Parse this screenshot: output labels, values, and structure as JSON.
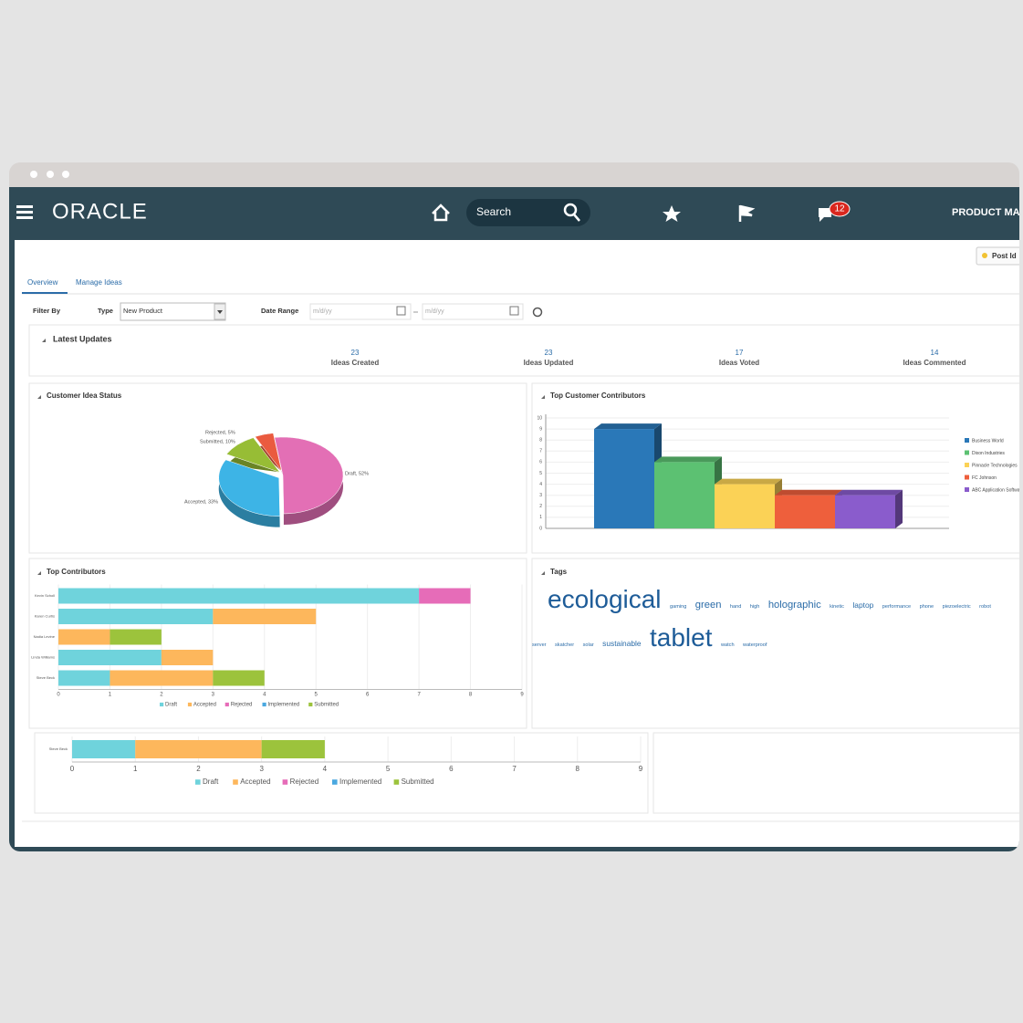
{
  "header": {
    "logo": "ORACLE",
    "search_placeholder": "Search",
    "notification_count": 12,
    "user_menu": "PRODUCT MA"
  },
  "toolbar": {
    "post_button": "Post Id"
  },
  "tabs": [
    "Overview",
    "Manage Ideas"
  ],
  "filter": {
    "label": "Filter By",
    "type_label": "Type",
    "type_value": "New Product",
    "date_label": "Date Range",
    "date_from": "m/d/yy",
    "date_to": "m/d/yy"
  },
  "latest_updates": {
    "title": "Latest Updates",
    "stats": [
      {
        "value": 23,
        "label": "Ideas Created"
      },
      {
        "value": 23,
        "label": "Ideas Updated"
      },
      {
        "value": 17,
        "label": "Ideas Voted"
      },
      {
        "value": 14,
        "label": "Ideas Commented"
      }
    ]
  },
  "chart_data": [
    {
      "type": "pie",
      "title": "Customer Idea Status",
      "categories": [
        "Draft",
        "Accepted",
        "Submitted",
        "Rejected"
      ],
      "values": [
        52,
        33,
        10,
        5
      ],
      "value_labels": [
        "Draft, 52%",
        "Accepted, 33%",
        "Submitted, 10%",
        "Rejected, 5%"
      ],
      "colors": [
        "#e36fb5",
        "#3db4e6",
        "#97bd35",
        "#ea5b3f"
      ]
    },
    {
      "type": "bar",
      "title": "Top Customer Contributors",
      "categories": [
        "Business World",
        "Dixon Industries",
        "Pinnacle Technologies",
        "FC Johnson",
        "ABC Application Software"
      ],
      "values": [
        9,
        6,
        4,
        3,
        3
      ],
      "colors": [
        "#2a78b8",
        "#5cc172",
        "#fbd256",
        "#ee5f3c",
        "#8a5ccc"
      ],
      "ylim": [
        0,
        10
      ],
      "yticks": [
        0,
        1,
        2,
        3,
        4,
        5,
        6,
        7,
        8,
        9,
        10
      ],
      "grid": true,
      "legend": "right"
    },
    {
      "type": "hbar",
      "title": "Top Contributors",
      "categories": [
        "Kevin Scholl",
        "Karen Curtis",
        "Nadia Levine",
        "Linda Williams",
        "Steve Beck"
      ],
      "series": [
        {
          "name": "Draft",
          "color": "#6fd3dc",
          "values": [
            7,
            3,
            0,
            2,
            1
          ]
        },
        {
          "name": "Accepted",
          "color": "#fdb75c",
          "values": [
            0,
            2,
            1,
            1,
            2
          ]
        },
        {
          "name": "Rejected",
          "color": "#e66cb8",
          "values": [
            1,
            0,
            0,
            0,
            0
          ]
        },
        {
          "name": "Implemented",
          "color": "#4aa8e0",
          "values": [
            0,
            0,
            0,
            0,
            0
          ]
        },
        {
          "name": "Submitted",
          "color": "#9cc33c",
          "values": [
            0,
            0,
            1,
            0,
            1
          ]
        }
      ],
      "xlim": [
        0,
        9
      ],
      "xticks": [
        0,
        1,
        2,
        3,
        4,
        5,
        6,
        7,
        8,
        9
      ],
      "grid": true,
      "legend": "bottom"
    },
    {
      "type": "hbar",
      "categories": [
        "Steve Beck"
      ],
      "series": [
        {
          "name": "Draft",
          "color": "#6fd3dc",
          "values": [
            1
          ]
        },
        {
          "name": "Accepted",
          "color": "#fdb75c",
          "values": [
            2
          ]
        },
        {
          "name": "Rejected",
          "color": "#e66cb8",
          "values": [
            0
          ]
        },
        {
          "name": "Implemented",
          "color": "#4aa8e0",
          "values": [
            0
          ]
        },
        {
          "name": "Submitted",
          "color": "#9cc33c",
          "values": [
            1
          ]
        }
      ],
      "xlim": [
        0,
        9
      ],
      "xticks": [
        0,
        1,
        2,
        3,
        4,
        5,
        6,
        7,
        8,
        9
      ],
      "grid": true,
      "legend": "bottom"
    }
  ],
  "tags": {
    "title": "Tags",
    "words": [
      {
        "text": "ecological",
        "weight": 10
      },
      {
        "text": "gaming",
        "weight": 2
      },
      {
        "text": "green",
        "weight": 4
      },
      {
        "text": "hand",
        "weight": 2
      },
      {
        "text": "high",
        "weight": 2
      },
      {
        "text": "holographic",
        "weight": 4
      },
      {
        "text": "kinetic",
        "weight": 2
      },
      {
        "text": "laptop",
        "weight": 3
      },
      {
        "text": "performance",
        "weight": 2
      },
      {
        "text": "phone",
        "weight": 2
      },
      {
        "text": "piezoelectric",
        "weight": 2
      },
      {
        "text": "robot",
        "weight": 2
      },
      {
        "text": "server",
        "weight": 2
      },
      {
        "text": "skatcher",
        "weight": 2
      },
      {
        "text": "solar",
        "weight": 2
      },
      {
        "text": "sustainable",
        "weight": 3
      },
      {
        "text": "tablet",
        "weight": 10
      },
      {
        "text": "watch",
        "weight": 2
      },
      {
        "text": "waterproof",
        "weight": 2
      }
    ]
  }
}
